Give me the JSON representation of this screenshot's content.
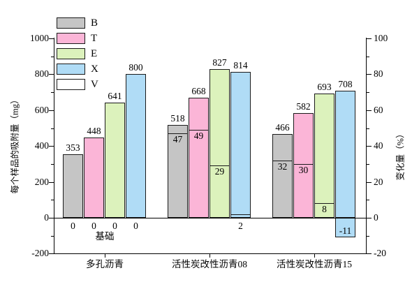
{
  "chart_data": {
    "type": "bar",
    "title": "",
    "left_axis": {
      "label": "每个样品的吸附量（mg）",
      "min": -200,
      "max": 1000,
      "major_ticks": [
        -200,
        0,
        200,
        400,
        600,
        800,
        1000
      ],
      "minor_ticks": [
        -100,
        100,
        300,
        500,
        700,
        900
      ]
    },
    "right_axis": {
      "label": "变化量（%）",
      "min": -20,
      "max": 100,
      "major_ticks": [
        -20,
        0,
        20,
        40,
        60,
        80,
        100
      ],
      "minor_ticks": [
        -10,
        10,
        30,
        50,
        70,
        90
      ]
    },
    "legend": {
      "position": "top-left",
      "items": [
        {
          "label": "B",
          "color": "#c5c5c5",
          "hatch": false
        },
        {
          "label": "T",
          "color": "#fbb5d7",
          "hatch": false
        },
        {
          "label": "E",
          "color": "#dcf2bc",
          "hatch": false
        },
        {
          "label": "X",
          "color": "#b0dcf6",
          "hatch": false
        },
        {
          "label": "V",
          "color": "#ffffff",
          "hatch": true
        }
      ]
    },
    "series_names": [
      "B",
      "T",
      "E",
      "X"
    ],
    "categories": [
      "多孔沥青",
      "活性炭改性沥青08",
      "活性炭改性沥青15"
    ],
    "groups": [
      {
        "category": "多孔沥青",
        "note": "基础",
        "values": [
          353,
          448,
          641,
          800
        ],
        "changes": [
          0,
          0,
          0,
          0
        ]
      },
      {
        "category": "活性炭改性沥青08",
        "note": "",
        "values": [
          518,
          668,
          827,
          814
        ],
        "changes": [
          47,
          49,
          29,
          2
        ]
      },
      {
        "category": "活性炭改性沥青15",
        "note": "",
        "values": [
          466,
          582,
          693,
          708
        ],
        "changes": [
          32,
          30,
          8,
          -11
        ]
      }
    ],
    "colors": {
      "bar_border": "#1a1a1a",
      "axis": "#000000",
      "text": "#000000",
      "background": "#ffffff"
    }
  }
}
